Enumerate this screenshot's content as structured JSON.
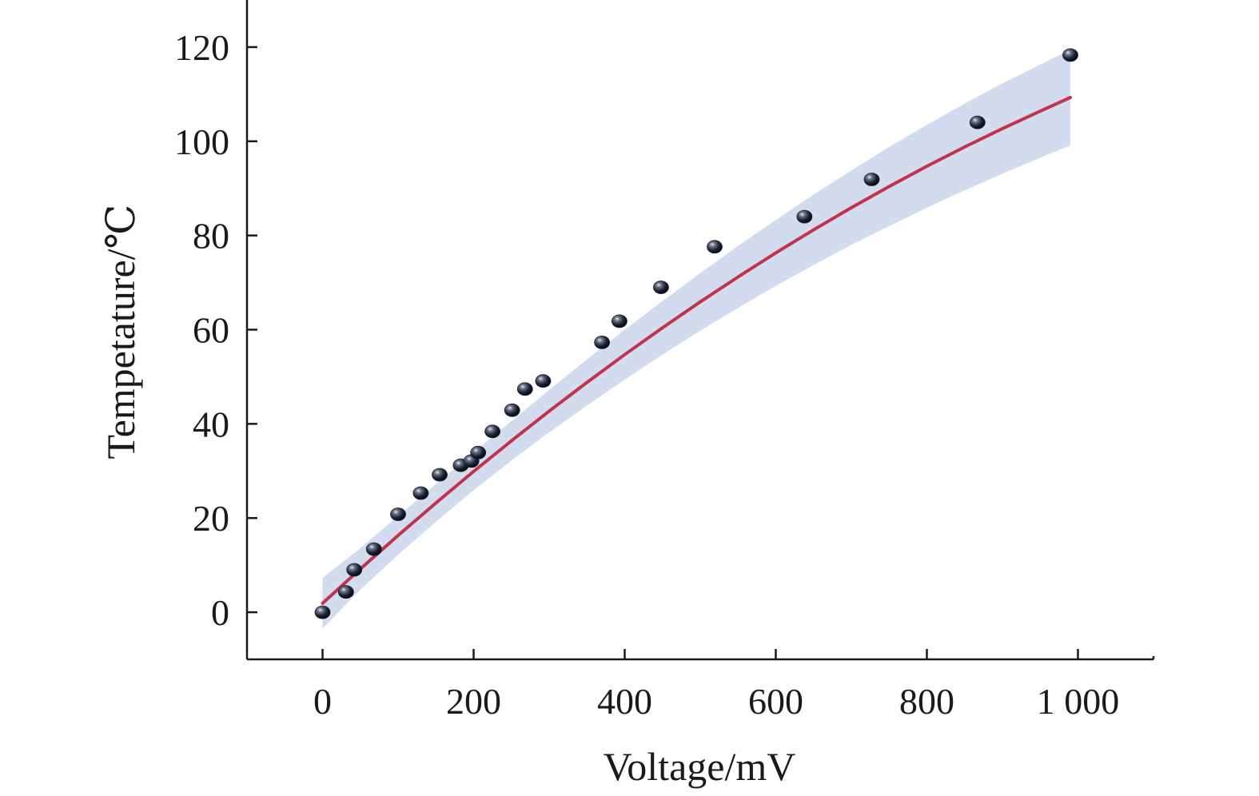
{
  "chart_data": {
    "type": "scatter",
    "title": "",
    "xlabel": "Voltage/mV",
    "ylabel": "Tempetature/℃",
    "xlim": [
      -100,
      1100
    ],
    "ylim": [
      -10,
      130
    ],
    "x_ticks": [
      0,
      200,
      400,
      600,
      800,
      1000
    ],
    "x_tick_labels": [
      "0",
      "200",
      "400",
      "600",
      "800",
      "1 000"
    ],
    "y_ticks": [
      0,
      20,
      40,
      60,
      80,
      100,
      120
    ],
    "y_tick_labels": [
      "0",
      "20",
      "40",
      "60",
      "80",
      "100",
      "120"
    ],
    "grid": false,
    "legend": "none",
    "series": [
      {
        "kind": "points",
        "x": [
          0,
          31,
          42,
          68,
          100,
          130,
          155,
          183,
          197,
          206,
          225,
          251,
          268,
          292,
          370,
          393,
          448,
          519,
          638,
          727,
          867,
          990
        ],
        "y": [
          0,
          4.3,
          9,
          13.4,
          20.8,
          25.3,
          29.2,
          31.2,
          32.1,
          33.9,
          38.4,
          42.9,
          47.4,
          49.1,
          57.3,
          61.8,
          69,
          77.6,
          84,
          91.9,
          104,
          118.3
        ]
      },
      {
        "kind": "fit",
        "x": [
          0,
          50,
          100,
          150,
          200,
          250,
          300,
          350,
          400,
          450,
          500,
          550,
          600,
          650,
          700,
          750,
          800,
          850,
          900,
          950,
          990
        ],
        "y": [
          1.9,
          9.2,
          16.3,
          23.2,
          29.9,
          36.4,
          42.7,
          48.8,
          54.7,
          60.4,
          65.9,
          71.2,
          76.3,
          81.2,
          85.9,
          90.4,
          94.7,
          98.8,
          102.7,
          106.4,
          109.3
        ],
        "band_lower": [
          -3.5,
          4.8,
          12.2,
          19.2,
          25.9,
          32.2,
          38.2,
          43.9,
          49.4,
          54.7,
          59.8,
          64.6,
          69.3,
          73.7,
          78,
          82,
          85.9,
          89.6,
          93.1,
          96.5,
          99.1
        ],
        "band_upper": [
          7.3,
          13.6,
          20.4,
          27.2,
          33.9,
          40.6,
          47.2,
          53.7,
          60,
          66.1,
          72,
          77.8,
          83.3,
          88.7,
          93.8,
          98.8,
          103.5,
          108,
          112.3,
          116.3,
          119.5
        ]
      }
    ],
    "colors": {
      "fit_line": "#c0334a",
      "band": "#d3dbef",
      "point": "#1c2233",
      "axis": "#1a1a1a"
    }
  }
}
